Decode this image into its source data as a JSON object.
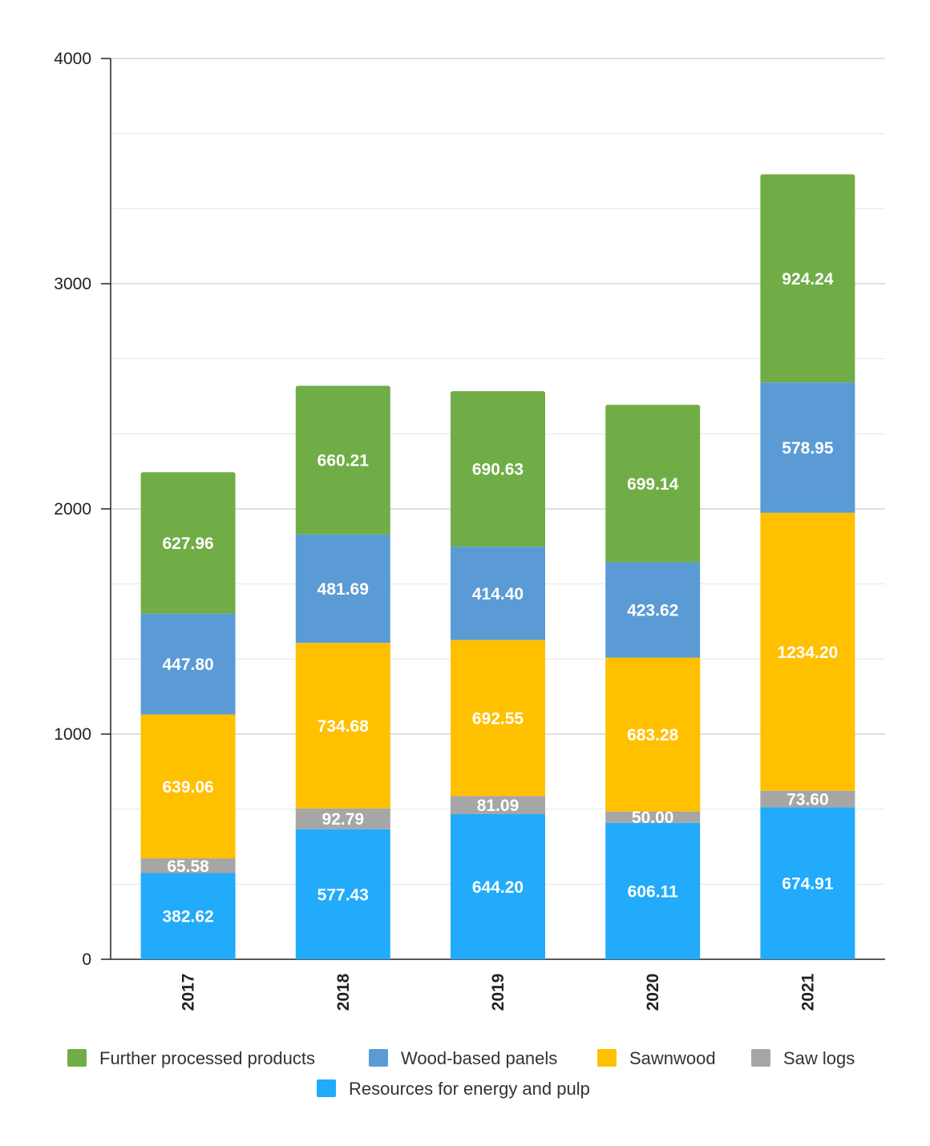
{
  "chart_data": {
    "type": "bar",
    "stacked": true,
    "categories": [
      "2017",
      "2018",
      "2019",
      "2020",
      "2021"
    ],
    "series": [
      {
        "name": "Resources for energy and pulp",
        "color": "#21abfa",
        "values": [
          382.62,
          577.43,
          644.2,
          606.11,
          674.91
        ]
      },
      {
        "name": "Saw logs",
        "color": "#a6a6a6",
        "values": [
          65.58,
          92.79,
          81.09,
          50.0,
          73.6
        ]
      },
      {
        "name": "Sawnwood",
        "color": "#ffc000",
        "values": [
          639.06,
          734.68,
          692.55,
          683.28,
          1234.2
        ]
      },
      {
        "name": "Wood-based panels",
        "color": "#5b9bd5",
        "values": [
          447.8,
          481.69,
          414.4,
          423.62,
          578.95
        ]
      },
      {
        "name": "Further processed products",
        "color": "#70ad47",
        "values": [
          627.96,
          660.21,
          690.63,
          699.14,
          924.24
        ]
      }
    ],
    "legend_order": [
      "Further processed products",
      "Wood-based panels",
      "Sawnwood",
      "Saw logs",
      "Resources for energy and pulp"
    ],
    "ylim": [
      0,
      4000
    ],
    "yticks": [
      0,
      1000,
      2000,
      3000,
      4000
    ],
    "minor_gridlines": true,
    "grid": true,
    "legend_position": "bottom",
    "title": "",
    "xlabel": "",
    "ylabel": ""
  }
}
